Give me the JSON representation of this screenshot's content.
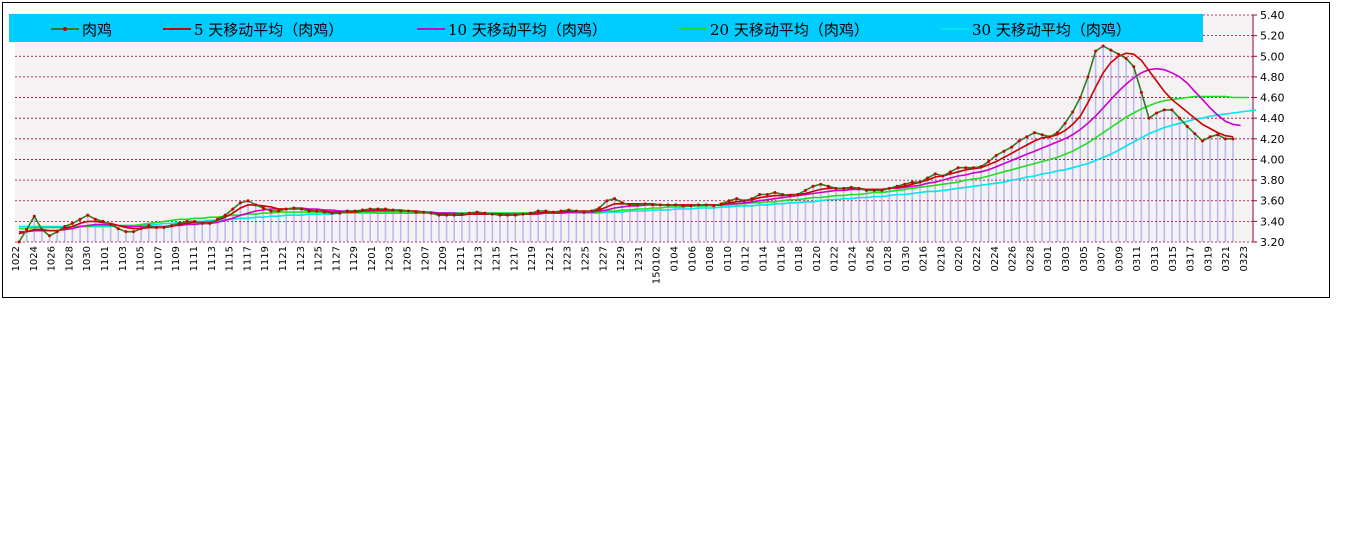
{
  "chart_data": {
    "type": "line",
    "title": "",
    "xlabel": "",
    "ylabel": "",
    "ylim": [
      3.2,
      5.4
    ],
    "y_ticks": [
      "3.20",
      "3.40",
      "3.60",
      "3.80",
      "4.00",
      "4.20",
      "4.40",
      "4.60",
      "4.80",
      "5.00",
      "5.20",
      "5.40"
    ],
    "y_axis_position": "right",
    "grid": true,
    "legend_position": "top",
    "x_tick_labels": [
      "1022",
      "1024",
      "1026",
      "1028",
      "1030",
      "1101",
      "1103",
      "1105",
      "1107",
      "1109",
      "1111",
      "1113",
      "1115",
      "1117",
      "1119",
      "1121",
      "1123",
      "1125",
      "1127",
      "1129",
      "1201",
      "1203",
      "1205",
      "1207",
      "1209",
      "1211",
      "1213",
      "1215",
      "1217",
      "1219",
      "1221",
      "1223",
      "1225",
      "1227",
      "1229",
      "1231",
      "150102",
      "0104",
      "0106",
      "0108",
      "0110",
      "0112",
      "0114",
      "0116",
      "0118",
      "0120",
      "0122",
      "0124",
      "0126",
      "0128",
      "0130",
      "0216",
      "0218",
      "0220",
      "0222",
      "0224",
      "0226",
      "0228",
      "0301",
      "0303",
      "0305",
      "0307",
      "0309",
      "0311",
      "0313",
      "0315",
      "0317",
      "0319",
      "0321",
      "0323"
    ],
    "series": [
      {
        "name": "肉鸡",
        "color": "#2e7d1e",
        "marker_color": "#cc0000",
        "values": [
          3.2,
          3.32,
          3.45,
          3.32,
          3.26,
          3.3,
          3.35,
          3.38,
          3.42,
          3.46,
          3.42,
          3.4,
          3.37,
          3.33,
          3.3,
          3.3,
          3.33,
          3.36,
          3.34,
          3.34,
          3.36,
          3.38,
          3.4,
          3.4,
          3.38,
          3.38,
          3.42,
          3.46,
          3.52,
          3.58,
          3.6,
          3.56,
          3.53,
          3.5,
          3.5,
          3.52,
          3.53,
          3.52,
          3.5,
          3.5,
          3.49,
          3.48,
          3.48,
          3.5,
          3.5,
          3.51,
          3.52,
          3.52,
          3.52,
          3.51,
          3.5,
          3.5,
          3.49,
          3.49,
          3.48,
          3.46,
          3.46,
          3.46,
          3.47,
          3.48,
          3.49,
          3.48,
          3.47,
          3.46,
          3.46,
          3.46,
          3.47,
          3.48,
          3.5,
          3.5,
          3.49,
          3.5,
          3.51,
          3.5,
          3.49,
          3.5,
          3.53,
          3.6,
          3.62,
          3.58,
          3.56,
          3.56,
          3.57,
          3.56,
          3.56,
          3.56,
          3.56,
          3.55,
          3.55,
          3.56,
          3.56,
          3.55,
          3.57,
          3.6,
          3.62,
          3.6,
          3.62,
          3.66,
          3.66,
          3.68,
          3.66,
          3.65,
          3.66,
          3.7,
          3.74,
          3.76,
          3.74,
          3.72,
          3.72,
          3.73,
          3.72,
          3.7,
          3.7,
          3.7,
          3.72,
          3.74,
          3.76,
          3.78,
          3.78,
          3.82,
          3.86,
          3.84,
          3.88,
          3.92,
          3.92,
          3.92,
          3.93,
          3.98,
          4.04,
          4.08,
          4.12,
          4.18,
          4.22,
          4.26,
          4.24,
          4.22,
          4.26,
          4.35,
          4.46,
          4.6,
          4.8,
          5.05,
          5.1,
          5.06,
          5.02,
          4.98,
          4.9,
          4.65,
          4.4,
          4.45,
          4.48,
          4.48,
          4.4,
          4.32,
          4.25,
          4.18,
          4.22,
          4.24,
          4.2,
          4.2
        ]
      },
      {
        "name": "5 天移动平均（肉鸡）",
        "color": "#cc0000",
        "values": [
          3.28,
          3.3,
          3.32,
          3.32,
          3.31,
          3.31,
          3.33,
          3.35,
          3.38,
          3.4,
          3.4,
          3.39,
          3.38,
          3.36,
          3.34,
          3.33,
          3.33,
          3.34,
          3.34,
          3.34,
          3.35,
          3.37,
          3.38,
          3.39,
          3.39,
          3.39,
          3.41,
          3.44,
          3.48,
          3.53,
          3.56,
          3.56,
          3.55,
          3.54,
          3.52,
          3.52,
          3.52,
          3.52,
          3.51,
          3.5,
          3.5,
          3.49,
          3.49,
          3.49,
          3.49,
          3.5,
          3.51,
          3.51,
          3.51,
          3.51,
          3.51,
          3.5,
          3.5,
          3.49,
          3.48,
          3.47,
          3.47,
          3.46,
          3.46,
          3.47,
          3.47,
          3.47,
          3.47,
          3.47,
          3.46,
          3.46,
          3.47,
          3.47,
          3.48,
          3.49,
          3.49,
          3.49,
          3.5,
          3.5,
          3.5,
          3.5,
          3.51,
          3.54,
          3.57,
          3.57,
          3.57,
          3.57,
          3.57,
          3.57,
          3.56,
          3.56,
          3.56,
          3.56,
          3.56,
          3.56,
          3.56,
          3.56,
          3.56,
          3.58,
          3.59,
          3.6,
          3.61,
          3.63,
          3.64,
          3.65,
          3.65,
          3.66,
          3.66,
          3.67,
          3.69,
          3.71,
          3.72,
          3.72,
          3.72,
          3.72,
          3.72,
          3.71,
          3.71,
          3.71,
          3.72,
          3.73,
          3.74,
          3.76,
          3.78,
          3.8,
          3.83,
          3.84,
          3.86,
          3.88,
          3.9,
          3.91,
          3.92,
          3.95,
          3.98,
          4.02,
          4.06,
          4.1,
          4.14,
          4.18,
          4.21,
          4.22,
          4.24,
          4.28,
          4.34,
          4.42,
          4.55,
          4.7,
          4.84,
          4.94,
          5.0,
          5.03,
          5.02,
          4.96,
          4.86,
          4.76,
          4.66,
          4.58,
          4.52,
          4.46,
          4.4,
          4.34,
          4.3,
          4.26,
          4.23,
          4.22
        ]
      },
      {
        "name": "10 天移动平均（肉鸡）",
        "color": "#cc00cc",
        "values": [
          3.3,
          3.3,
          3.31,
          3.31,
          3.31,
          3.31,
          3.32,
          3.33,
          3.35,
          3.36,
          3.37,
          3.37,
          3.37,
          3.36,
          3.35,
          3.35,
          3.35,
          3.35,
          3.35,
          3.35,
          3.36,
          3.36,
          3.37,
          3.37,
          3.38,
          3.38,
          3.39,
          3.41,
          3.43,
          3.46,
          3.48,
          3.5,
          3.51,
          3.52,
          3.52,
          3.52,
          3.53,
          3.53,
          3.52,
          3.52,
          3.51,
          3.51,
          3.5,
          3.5,
          3.5,
          3.5,
          3.5,
          3.5,
          3.5,
          3.5,
          3.5,
          3.5,
          3.5,
          3.49,
          3.49,
          3.48,
          3.48,
          3.48,
          3.47,
          3.47,
          3.47,
          3.47,
          3.47,
          3.47,
          3.47,
          3.47,
          3.47,
          3.47,
          3.47,
          3.48,
          3.48,
          3.48,
          3.49,
          3.49,
          3.49,
          3.49,
          3.5,
          3.51,
          3.53,
          3.54,
          3.55,
          3.55,
          3.56,
          3.56,
          3.56,
          3.56,
          3.56,
          3.56,
          3.56,
          3.56,
          3.56,
          3.56,
          3.56,
          3.57,
          3.57,
          3.58,
          3.59,
          3.6,
          3.61,
          3.62,
          3.63,
          3.64,
          3.65,
          3.66,
          3.67,
          3.68,
          3.69,
          3.7,
          3.7,
          3.71,
          3.71,
          3.71,
          3.71,
          3.71,
          3.72,
          3.72,
          3.73,
          3.74,
          3.75,
          3.77,
          3.78,
          3.8,
          3.82,
          3.84,
          3.85,
          3.87,
          3.88,
          3.9,
          3.93,
          3.96,
          3.99,
          4.02,
          4.05,
          4.08,
          4.11,
          4.14,
          4.17,
          4.2,
          4.24,
          4.29,
          4.35,
          4.42,
          4.5,
          4.58,
          4.66,
          4.73,
          4.79,
          4.84,
          4.87,
          4.88,
          4.87,
          4.84,
          4.8,
          4.74,
          4.66,
          4.58,
          4.5,
          4.43,
          4.37,
          4.34,
          4.33
        ]
      },
      {
        "name": "20 天移动平均（肉鸡）",
        "color": "#22dd22",
        "values": [
          3.33,
          3.33,
          3.34,
          3.34,
          3.34,
          3.34,
          3.34,
          3.35,
          3.35,
          3.35,
          3.36,
          3.36,
          3.36,
          3.36,
          3.36,
          3.36,
          3.37,
          3.38,
          3.39,
          3.4,
          3.41,
          3.42,
          3.42,
          3.43,
          3.43,
          3.44,
          3.44,
          3.45,
          3.46,
          3.46,
          3.47,
          3.47,
          3.48,
          3.48,
          3.49,
          3.49,
          3.49,
          3.49,
          3.49,
          3.49,
          3.49,
          3.49,
          3.49,
          3.49,
          3.49,
          3.49,
          3.49,
          3.48,
          3.48,
          3.48,
          3.48,
          3.48,
          3.48,
          3.48,
          3.48,
          3.48,
          3.48,
          3.48,
          3.48,
          3.48,
          3.48,
          3.48,
          3.48,
          3.48,
          3.48,
          3.48,
          3.48,
          3.48,
          3.48,
          3.48,
          3.48,
          3.48,
          3.49,
          3.49,
          3.49,
          3.49,
          3.49,
          3.5,
          3.5,
          3.51,
          3.51,
          3.52,
          3.52,
          3.53,
          3.53,
          3.54,
          3.54,
          3.54,
          3.55,
          3.55,
          3.55,
          3.56,
          3.56,
          3.56,
          3.57,
          3.57,
          3.58,
          3.58,
          3.59,
          3.59,
          3.6,
          3.61,
          3.61,
          3.62,
          3.63,
          3.63,
          3.64,
          3.65,
          3.65,
          3.66,
          3.66,
          3.67,
          3.68,
          3.68,
          3.69,
          3.7,
          3.71,
          3.72,
          3.73,
          3.74,
          3.75,
          3.76,
          3.77,
          3.78,
          3.8,
          3.81,
          3.82,
          3.84,
          3.86,
          3.88,
          3.9,
          3.92,
          3.94,
          3.96,
          3.98,
          4.0,
          4.02,
          4.05,
          4.08,
          4.12,
          4.16,
          4.21,
          4.26,
          4.31,
          4.36,
          4.41,
          4.45,
          4.49,
          4.52,
          4.55,
          4.57,
          4.58,
          4.59,
          4.6,
          4.61,
          4.61,
          4.61,
          4.61,
          4.61,
          4.6,
          4.6,
          4.6
        ]
      },
      {
        "name": "30 天移动平均（肉鸡）",
        "color": "#00e5ee",
        "values": [
          3.35,
          3.35,
          3.35,
          3.35,
          3.35,
          3.35,
          3.35,
          3.35,
          3.35,
          3.35,
          3.35,
          3.35,
          3.35,
          3.36,
          3.36,
          3.36,
          3.36,
          3.37,
          3.37,
          3.38,
          3.38,
          3.39,
          3.39,
          3.4,
          3.4,
          3.41,
          3.41,
          3.42,
          3.42,
          3.43,
          3.43,
          3.44,
          3.44,
          3.45,
          3.45,
          3.46,
          3.46,
          3.46,
          3.47,
          3.47,
          3.47,
          3.47,
          3.48,
          3.48,
          3.48,
          3.48,
          3.48,
          3.48,
          3.48,
          3.48,
          3.48,
          3.48,
          3.48,
          3.48,
          3.48,
          3.48,
          3.48,
          3.48,
          3.48,
          3.48,
          3.48,
          3.48,
          3.48,
          3.48,
          3.48,
          3.48,
          3.48,
          3.48,
          3.48,
          3.48,
          3.48,
          3.48,
          3.48,
          3.48,
          3.48,
          3.48,
          3.48,
          3.49,
          3.49,
          3.49,
          3.5,
          3.5,
          3.5,
          3.51,
          3.51,
          3.51,
          3.52,
          3.52,
          3.52,
          3.53,
          3.53,
          3.53,
          3.54,
          3.54,
          3.55,
          3.55,
          3.55,
          3.56,
          3.56,
          3.57,
          3.57,
          3.58,
          3.58,
          3.59,
          3.59,
          3.6,
          3.61,
          3.61,
          3.62,
          3.62,
          3.63,
          3.63,
          3.64,
          3.64,
          3.65,
          3.66,
          3.66,
          3.67,
          3.68,
          3.69,
          3.69,
          3.7,
          3.71,
          3.72,
          3.73,
          3.74,
          3.75,
          3.76,
          3.77,
          3.78,
          3.8,
          3.81,
          3.83,
          3.84,
          3.86,
          3.87,
          3.89,
          3.9,
          3.92,
          3.94,
          3.96,
          3.99,
          4.02,
          4.05,
          4.09,
          4.13,
          4.17,
          4.21,
          4.25,
          4.28,
          4.31,
          4.33,
          4.35,
          4.37,
          4.39,
          4.4,
          4.42,
          4.43,
          4.44,
          4.45,
          4.46,
          4.47,
          4.48
        ]
      }
    ]
  },
  "colors": {
    "legend_bg": "#00ccff",
    "grid": "#990033",
    "axis": "#990033",
    "plot_bg": "#f5f2f4",
    "volume_bar": "#bbbbf0"
  }
}
